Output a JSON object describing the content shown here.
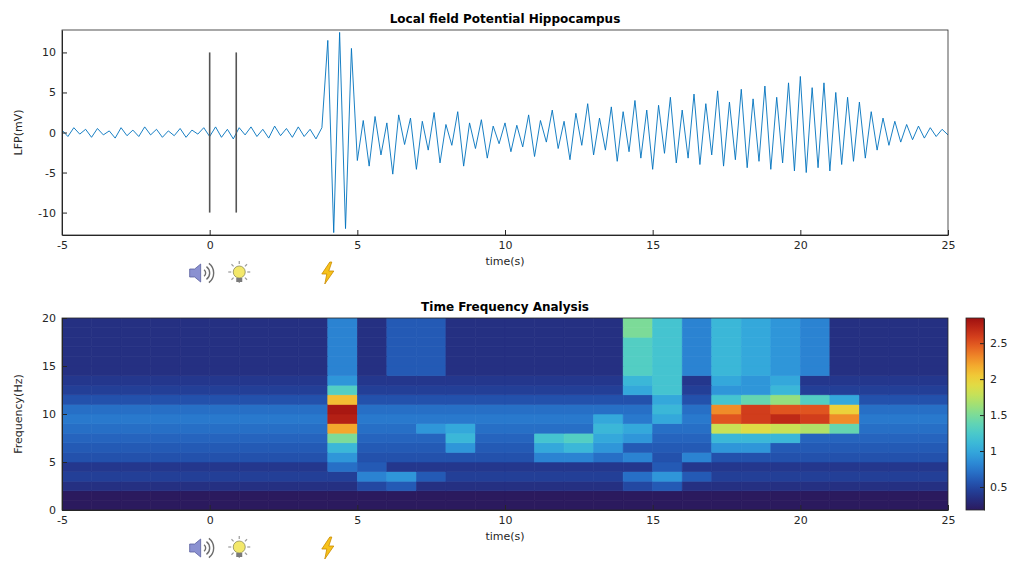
{
  "chart_data": [
    {
      "type": "line",
      "title": "Local field Potential Hippocampus",
      "x_label": "time(s)",
      "y_label": "LFP(mV)",
      "color": "#0072bd",
      "xlim": [
        -5,
        25
      ],
      "ylim": [
        -12.8,
        12.8
      ],
      "xticks": [
        -5,
        0,
        5,
        10,
        15,
        20,
        25
      ],
      "yticks": [
        -10,
        -5,
        0,
        5,
        10
      ],
      "event_lines": [
        {
          "x": 0,
          "ymin": -10,
          "ymax": 10
        },
        {
          "x": 0.9,
          "ymin": -10,
          "ymax": 10
        }
      ],
      "stimulus_times": [
        0,
        0.9,
        4
      ],
      "x": [
        -5,
        -4.8,
        -4.6,
        -4.4,
        -4.2,
        -4,
        -3.8,
        -3.6,
        -3.4,
        -3.2,
        -3,
        -2.8,
        -2.6,
        -2.4,
        -2.2,
        -2,
        -1.8,
        -1.6,
        -1.4,
        -1.2,
        -1,
        -0.8,
        -0.6,
        -0.4,
        -0.2,
        0,
        0.2,
        0.4,
        0.6,
        0.8,
        1,
        1.2,
        1.4,
        1.6,
        1.8,
        2,
        2.2,
        2.4,
        2.6,
        2.8,
        3,
        3.2,
        3.4,
        3.6,
        3.8,
        4,
        4.2,
        4.4,
        4.6,
        4.8,
        5,
        5.2,
        5.4,
        5.6,
        5.8,
        6,
        6.2,
        6.4,
        6.6,
        6.8,
        7,
        7.2,
        7.4,
        7.6,
        7.8,
        8,
        8.2,
        8.4,
        8.6,
        8.8,
        9,
        9.2,
        9.4,
        9.6,
        9.8,
        10,
        10.2,
        10.4,
        10.6,
        10.8,
        11,
        11.2,
        11.4,
        11.6,
        11.8,
        12,
        12.2,
        12.4,
        12.6,
        12.8,
        13,
        13.2,
        13.4,
        13.6,
        13.8,
        14,
        14.2,
        14.4,
        14.6,
        14.8,
        15,
        15.2,
        15.4,
        15.6,
        15.8,
        16,
        16.2,
        16.4,
        16.6,
        16.8,
        17,
        17.2,
        17.4,
        17.6,
        17.8,
        18,
        18.2,
        18.4,
        18.6,
        18.8,
        19,
        19.2,
        19.4,
        19.6,
        19.8,
        20,
        20.2,
        20.4,
        20.6,
        20.8,
        21,
        21.2,
        21.4,
        21.6,
        21.8,
        22,
        22.2,
        22.4,
        22.6,
        22.8,
        23,
        23.2,
        23.4,
        23.6,
        23.8,
        24,
        24.2,
        24.4,
        24.6,
        24.8,
        25
      ],
      "values": [
        0.3,
        -0.5,
        0.6,
        -0.2,
        0.4,
        -0.6,
        0.5,
        -0.3,
        0.2,
        -0.7,
        0.6,
        -0.4,
        0.3,
        -0.5,
        0.7,
        -0.3,
        0.4,
        -0.6,
        0.2,
        -0.4,
        0.5,
        -0.6,
        0.3,
        -0.2,
        0.6,
        -0.5,
        0.7,
        -0.6,
        0.4,
        -0.8,
        0.6,
        -0.3,
        0.7,
        -0.5,
        0.4,
        -0.7,
        0.8,
        -0.4,
        0.5,
        -0.6,
        0.7,
        -0.5,
        0.4,
        -0.8,
        0.6,
        11.5,
        -12.5,
        12.5,
        -12,
        10.5,
        -3.5,
        1.5,
        -4.2,
        2,
        -2.8,
        1.2,
        -5.2,
        2.2,
        -1.5,
        1.8,
        -4.6,
        1.4,
        -2.2,
        2.5,
        -3.8,
        1,
        -1.6,
        2.6,
        -4.2,
        1.2,
        -2,
        1.6,
        -3.2,
        0.8,
        -1.4,
        1.2,
        -2.4,
        0.9,
        -1.8,
        2.2,
        -3,
        1.5,
        -1.2,
        2.8,
        -2,
        1.4,
        -3.4,
        2.4,
        -1.6,
        3.6,
        -2.8,
        1.8,
        -2.2,
        3.2,
        -3.6,
        2.6,
        -2.4,
        4,
        -3.2,
        2.8,
        -4.6,
        3.4,
        -2.6,
        4.4,
        -3.8,
        2.8,
        -3.2,
        4.8,
        -4,
        3.6,
        -2.8,
        5.2,
        -4.2,
        3.8,
        -3.4,
        5.4,
        -4.4,
        4.2,
        -3.6,
        5.8,
        -4.6,
        4.4,
        -3.8,
        6.2,
        -4.8,
        7,
        -5,
        5.6,
        -4.4,
        6.2,
        -4.8,
        5,
        -4,
        4.4,
        -3.6,
        3.8,
        -3.2,
        2.6,
        -2.2,
        1.8,
        -1.6,
        1.4,
        -1.2,
        1,
        -0.9,
        0.8,
        -0.7,
        0.6,
        -0.5,
        0.4,
        -0.3
      ]
    },
    {
      "type": "heatmap",
      "title": "Time Frequency Analysis",
      "x_label": "time(s)",
      "y_label": "Frequency(Hz)",
      "xlim": [
        -5,
        25
      ],
      "ylim": [
        0,
        20
      ],
      "xticks": [
        -5,
        0,
        5,
        10,
        15,
        20,
        25
      ],
      "yticks": [
        0,
        5,
        10,
        15,
        20
      ],
      "stimulus_times": [
        0,
        0.9,
        4
      ],
      "colorbar_range": [
        0.18,
        2.85
      ],
      "colorbar_ticks": [
        0.5,
        1,
        1.5,
        2,
        2.5
      ],
      "time_bins": [
        -5,
        -4,
        -3,
        -2,
        -1,
        0,
        1,
        2,
        3,
        4,
        5,
        6,
        7,
        8,
        9,
        10,
        11,
        12,
        13,
        14,
        15,
        16,
        17,
        18,
        19,
        20,
        21,
        22,
        23,
        24,
        25
      ],
      "frequency_bins": [
        0,
        1,
        2,
        3,
        4,
        5,
        6,
        7,
        8,
        9,
        10,
        11,
        12,
        13,
        14,
        15,
        16,
        17,
        18,
        19,
        20
      ],
      "cells": [
        [
          0.1,
          0.1,
          0.1,
          0.1,
          0.1,
          0.1,
          0.1,
          0.1,
          0.1,
          0.1,
          0.1,
          0.1,
          0.1,
          0.1,
          0.1,
          0.1,
          0.1,
          0.1,
          0.1,
          0.1,
          0.1,
          0.1,
          0.1,
          0.1,
          0.1,
          0.1,
          0.1,
          0.1,
          0.1,
          0.1
        ],
        [
          0.15,
          0.15,
          0.15,
          0.15,
          0.15,
          0.15,
          0.15,
          0.15,
          0.15,
          0.15,
          0.15,
          0.15,
          0.15,
          0.15,
          0.15,
          0.15,
          0.15,
          0.15,
          0.15,
          0.15,
          0.15,
          0.15,
          0.15,
          0.15,
          0.15,
          0.15,
          0.15,
          0.15,
          0.15,
          0.15
        ],
        [
          0.35,
          0.35,
          0.35,
          0.35,
          0.35,
          0.35,
          0.35,
          0.35,
          0.35,
          0.35,
          0.5,
          0.6,
          0.35,
          0.35,
          0.35,
          0.35,
          0.35,
          0.35,
          0.35,
          0.5,
          0.6,
          0.35,
          0.35,
          0.35,
          0.35,
          0.35,
          0.35,
          0.35,
          0.35,
          0.35
        ],
        [
          0.45,
          0.45,
          0.45,
          0.45,
          0.45,
          0.45,
          0.45,
          0.45,
          0.45,
          0.45,
          0.8,
          0.9,
          0.6,
          0.45,
          0.45,
          0.45,
          0.45,
          0.45,
          0.45,
          0.7,
          0.9,
          0.6,
          0.45,
          0.45,
          0.45,
          0.45,
          0.45,
          0.45,
          0.45,
          0.45
        ],
        [
          0.4,
          0.4,
          0.4,
          0.4,
          0.4,
          0.4,
          0.4,
          0.4,
          0.4,
          0.7,
          0.6,
          0.4,
          0.4,
          0.4,
          0.4,
          0.4,
          0.4,
          0.4,
          0.4,
          0.4,
          0.6,
          0.4,
          0.4,
          0.4,
          0.4,
          0.4,
          0.4,
          0.4,
          0.4,
          0.4
        ],
        [
          0.55,
          0.55,
          0.55,
          0.55,
          0.55,
          0.55,
          0.55,
          0.55,
          0.55,
          0.9,
          0.55,
          0.55,
          0.55,
          0.55,
          0.55,
          0.55,
          0.8,
          0.8,
          0.7,
          0.8,
          0.55,
          0.8,
          0.55,
          0.55,
          0.55,
          0.55,
          0.55,
          0.55,
          0.55,
          0.55
        ],
        [
          0.6,
          0.6,
          0.6,
          0.6,
          0.6,
          0.6,
          0.6,
          0.6,
          0.6,
          1.1,
          0.6,
          0.6,
          0.6,
          0.9,
          0.6,
          0.6,
          1,
          1.1,
          0.9,
          0.6,
          0.6,
          0.6,
          0.9,
          0.9,
          0.6,
          0.6,
          0.6,
          0.6,
          0.6,
          0.6
        ],
        [
          0.65,
          0.65,
          0.65,
          0.65,
          0.65,
          0.65,
          0.65,
          0.65,
          0.65,
          1.5,
          0.65,
          0.65,
          0.65,
          1.1,
          0.65,
          0.65,
          1.2,
          1.3,
          1,
          0.9,
          0.65,
          0.65,
          1.1,
          1.1,
          1.1,
          0.65,
          0.65,
          0.65,
          0.65,
          0.65
        ],
        [
          0.7,
          0.7,
          0.7,
          0.7,
          0.7,
          0.7,
          0.7,
          0.7,
          0.7,
          2.2,
          0.7,
          0.7,
          0.9,
          1,
          0.7,
          0.7,
          0.7,
          0.7,
          1.1,
          1,
          0.7,
          0.7,
          1.8,
          1.9,
          1.8,
          1.7,
          1.4,
          0.7,
          0.7,
          0.7
        ],
        [
          0.75,
          0.75,
          0.75,
          0.75,
          0.75,
          0.75,
          0.75,
          0.75,
          0.75,
          2.75,
          0.75,
          0.75,
          0.75,
          0.75,
          0.75,
          0.75,
          0.75,
          0.75,
          1,
          0.75,
          1,
          0.75,
          2.5,
          2.6,
          2.7,
          2.6,
          2.3,
          0.75,
          0.75,
          0.75
        ],
        [
          0.7,
          0.7,
          0.7,
          0.7,
          0.7,
          0.7,
          0.7,
          0.7,
          0.7,
          2.8,
          0.7,
          0.7,
          0.7,
          0.7,
          0.7,
          0.7,
          0.7,
          0.7,
          0.7,
          0.7,
          1.1,
          0.7,
          2.3,
          2.6,
          2.5,
          2.5,
          2,
          0.7,
          0.7,
          0.7
        ],
        [
          0.55,
          0.55,
          0.55,
          0.55,
          0.55,
          0.55,
          0.55,
          0.55,
          0.55,
          2.1,
          0.55,
          0.55,
          0.55,
          0.55,
          0.55,
          0.55,
          0.55,
          0.55,
          0.55,
          0.55,
          1,
          0.55,
          1.2,
          1.4,
          1.6,
          1.3,
          1,
          0.55,
          0.55,
          0.55
        ],
        [
          0.45,
          0.45,
          0.45,
          0.45,
          0.45,
          0.45,
          0.45,
          0.45,
          0.45,
          1.3,
          0.45,
          0.45,
          0.45,
          0.45,
          0.45,
          0.45,
          0.45,
          0.45,
          0.45,
          1,
          1.2,
          0.45,
          0.9,
          0.9,
          1.1,
          0.45,
          0.45,
          0.45,
          0.45,
          0.45
        ],
        [
          0.4,
          0.4,
          0.4,
          0.4,
          0.4,
          0.4,
          0.4,
          0.4,
          0.4,
          0.9,
          0.4,
          0.4,
          0.4,
          0.4,
          0.4,
          0.4,
          0.4,
          0.4,
          0.4,
          1.1,
          1.2,
          0.4,
          1,
          0.9,
          1,
          0.4,
          0.4,
          0.4,
          0.4,
          0.4
        ],
        [
          0.35,
          0.35,
          0.35,
          0.35,
          0.35,
          0.35,
          0.35,
          0.35,
          0.35,
          0.8,
          0.35,
          0.6,
          0.6,
          0.35,
          0.35,
          0.35,
          0.35,
          0.35,
          0.35,
          1.3,
          1.2,
          0.8,
          1.1,
          1,
          0.9,
          0.8,
          0.35,
          0.35,
          0.35,
          0.35
        ],
        [
          0.35,
          0.35,
          0.35,
          0.35,
          0.35,
          0.35,
          0.35,
          0.35,
          0.35,
          0.8,
          0.35,
          0.6,
          0.6,
          0.35,
          0.35,
          0.35,
          0.35,
          0.35,
          0.35,
          1.3,
          1.2,
          0.8,
          1.1,
          1,
          0.9,
          0.8,
          0.35,
          0.35,
          0.35,
          0.35
        ],
        [
          0.35,
          0.35,
          0.35,
          0.35,
          0.35,
          0.35,
          0.35,
          0.35,
          0.35,
          0.8,
          0.35,
          0.6,
          0.6,
          0.35,
          0.35,
          0.35,
          0.35,
          0.35,
          0.35,
          1.3,
          1.2,
          0.8,
          1.1,
          1,
          0.9,
          0.8,
          0.35,
          0.35,
          0.35,
          0.35
        ],
        [
          0.35,
          0.35,
          0.35,
          0.35,
          0.35,
          0.35,
          0.35,
          0.35,
          0.35,
          0.8,
          0.35,
          0.6,
          0.6,
          0.35,
          0.35,
          0.35,
          0.35,
          0.35,
          0.35,
          1.3,
          1.2,
          0.8,
          1.1,
          1,
          0.9,
          0.8,
          0.35,
          0.35,
          0.35,
          0.35
        ],
        [
          0.35,
          0.35,
          0.35,
          0.35,
          0.35,
          0.35,
          0.35,
          0.35,
          0.35,
          0.8,
          0.35,
          0.6,
          0.6,
          0.35,
          0.35,
          0.35,
          0.35,
          0.35,
          0.35,
          1.5,
          1.2,
          0.8,
          1.1,
          1,
          0.9,
          0.8,
          0.35,
          0.35,
          0.35,
          0.35
        ],
        [
          0.35,
          0.35,
          0.35,
          0.35,
          0.35,
          0.35,
          0.35,
          0.35,
          0.35,
          0.8,
          0.35,
          0.6,
          0.6,
          0.35,
          0.35,
          0.35,
          0.35,
          0.35,
          0.35,
          1.5,
          1.2,
          0.8,
          1.1,
          1,
          0.9,
          0.8,
          0.35,
          0.35,
          0.35,
          0.35
        ]
      ]
    }
  ]
}
